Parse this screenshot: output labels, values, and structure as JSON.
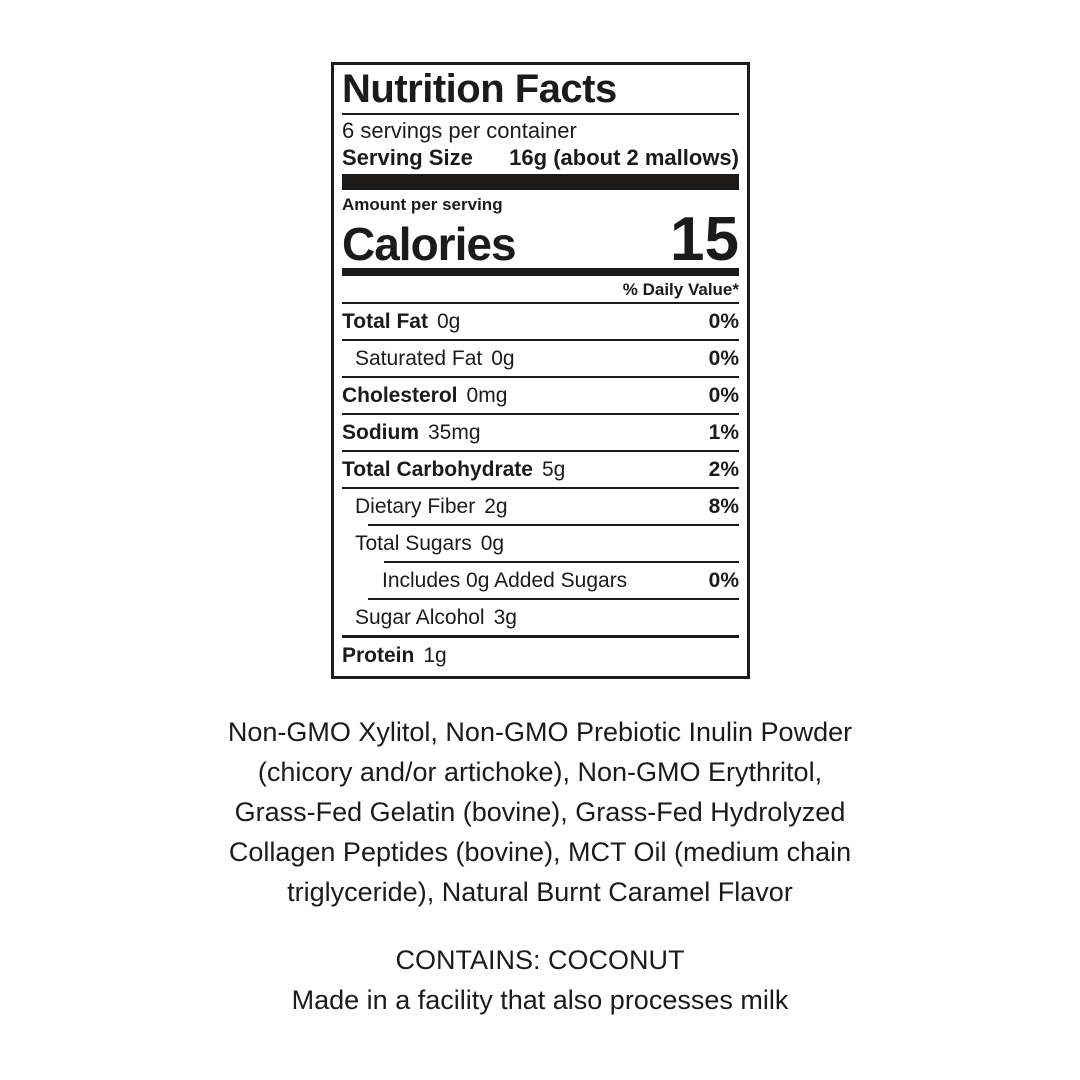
{
  "label": {
    "title": "Nutrition Facts",
    "servings_per_container": "6 servings per container",
    "serving_size_label": "Serving Size",
    "serving_size_value": "16g (about 2 mallows)",
    "amount_per_serving": "Amount per serving",
    "calories_label": "Calories",
    "calories_value": "15",
    "daily_value_header": "% Daily Value*",
    "rows": [
      {
        "name": "Total Fat",
        "amount": "0g",
        "dv": "0%"
      },
      {
        "name": "Saturated Fat",
        "amount": "0g",
        "dv": "0%"
      },
      {
        "name": "Cholesterol",
        "amount": "0mg",
        "dv": "0%"
      },
      {
        "name": "Sodium",
        "amount": "35mg",
        "dv": "1%"
      },
      {
        "name": "Total Carbohydrate",
        "amount": "5g",
        "dv": "2%"
      },
      {
        "name": "Dietary Fiber",
        "amount": "2g",
        "dv": "8%"
      },
      {
        "name": "Total Sugars",
        "amount": "0g",
        "dv": ""
      },
      {
        "name": "Includes 0g Added Sugars",
        "amount": "",
        "dv": "0%"
      },
      {
        "name": "Sugar Alcohol",
        "amount": "3g",
        "dv": ""
      },
      {
        "name": "Protein",
        "amount": "1g",
        "dv": ""
      }
    ]
  },
  "ingredients": {
    "lines": [
      "Non-GMO Xylitol, Non-GMO Prebiotic Inulin Powder",
      "(chicory and/or artichoke), Non-GMO Erythritol,",
      "Grass-Fed Gelatin (bovine), Grass-Fed Hydrolyzed",
      "Collagen Peptides (bovine), MCT Oil (medium chain",
      "triglyceride), Natural Burnt Caramel Flavor"
    ]
  },
  "allergen": {
    "contains": "CONTAINS: COCONUT",
    "facility": "Made in a facility that also processes milk"
  }
}
